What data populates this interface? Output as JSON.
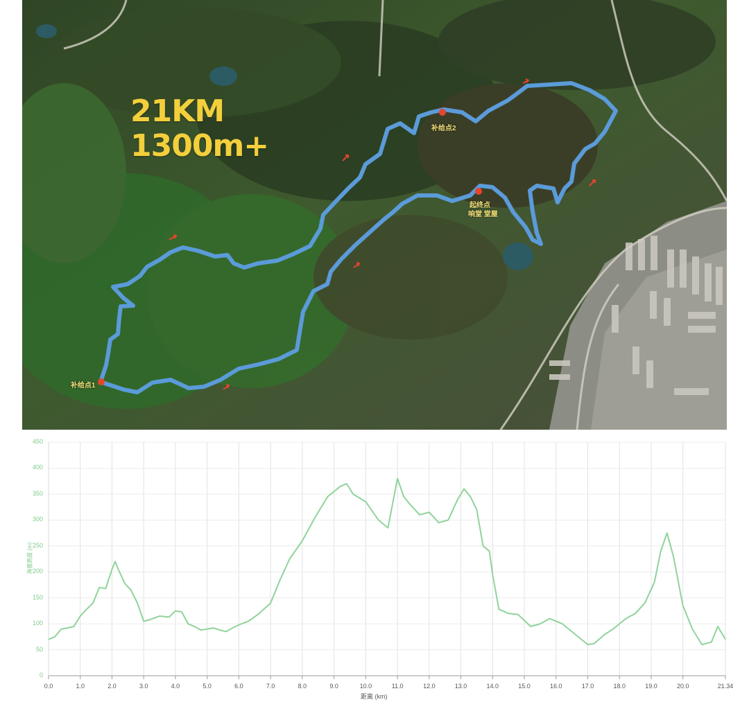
{
  "map": {
    "distance_text": "21KM",
    "elevation_gain_text": "1300m+",
    "labels": {
      "aid_station_1": "补给点1",
      "aid_station_2": "补给点2",
      "start_finish": "起终点",
      "start_finish_place": "响堂 堂屋"
    },
    "colors": {
      "route": "#5b9bd9",
      "marker": "#e8452c",
      "stat_text": "#f3cf3c"
    },
    "icons": [
      "direction-arrow-icon",
      "aid-station-marker-icon",
      "start-finish-marker-icon"
    ]
  },
  "chart_data": {
    "type": "area",
    "title": "",
    "xlabel": "距离 (km)",
    "ylabel": "海拔高度 (m)",
    "xlim": [
      0,
      21.34
    ],
    "ylim": [
      0,
      450
    ],
    "x_ticks": [
      "0.0",
      "1.0",
      "2.0",
      "3.0",
      "4.0",
      "5.0",
      "6.0",
      "7.0",
      "8.0",
      "9.0",
      "10.0",
      "11.0",
      "12.0",
      "13.0",
      "14.0",
      "15.0",
      "16.0",
      "17.0",
      "18.0",
      "19.0",
      "20.0",
      "21.34"
    ],
    "y_ticks": [
      "0",
      "50",
      "100",
      "150",
      "200",
      "250",
      "300",
      "350",
      "400",
      "450"
    ],
    "grid": true,
    "line_color": "#8fd39a",
    "series": [
      {
        "x": [
          0,
          0.2,
          0.4,
          0.6,
          0.8,
          1.0,
          1.2,
          1.4,
          1.6,
          1.8,
          2.0,
          2.1,
          2.2,
          2.4,
          2.6,
          2.8,
          3.0,
          3.2,
          3.5,
          3.8,
          4.0,
          4.2,
          4.4,
          4.6,
          4.8,
          5.0,
          5.2,
          5.4,
          5.6,
          5.8,
          6.0,
          6.3,
          6.6,
          7.0,
          7.3,
          7.6,
          8.0,
          8.4,
          8.8,
          9.2,
          9.4,
          9.6,
          10.0,
          10.4,
          10.7,
          11.0,
          11.2,
          11.4,
          11.7,
          12.0,
          12.3,
          12.6,
          12.9,
          13.1,
          13.3,
          13.5,
          13.7,
          13.9,
          14.0,
          14.2,
          14.5,
          14.8,
          15.2,
          15.5,
          15.8,
          16.2,
          16.6,
          17.0,
          17.2,
          17.5,
          17.8,
          18.2,
          18.5,
          18.8,
          19.1,
          19.3,
          19.5,
          19.7,
          20.0,
          20.3,
          20.6,
          20.9,
          21.1,
          21.34
        ],
        "y": [
          70,
          75,
          90,
          92,
          95,
          115,
          128,
          140,
          170,
          168,
          205,
          220,
          205,
          178,
          165,
          140,
          105,
          108,
          115,
          113,
          125,
          123,
          100,
          95,
          88,
          90,
          92,
          88,
          85,
          92,
          98,
          105,
          118,
          140,
          185,
          225,
          260,
          305,
          345,
          365,
          370,
          350,
          335,
          300,
          285,
          380,
          345,
          330,
          310,
          315,
          295,
          300,
          340,
          360,
          345,
          320,
          250,
          240,
          195,
          128,
          120,
          118,
          95,
          100,
          110,
          100,
          80,
          60,
          62,
          78,
          90,
          110,
          120,
          140,
          180,
          240,
          275,
          230,
          135,
          90,
          60,
          65,
          95,
          70
        ]
      }
    ]
  }
}
